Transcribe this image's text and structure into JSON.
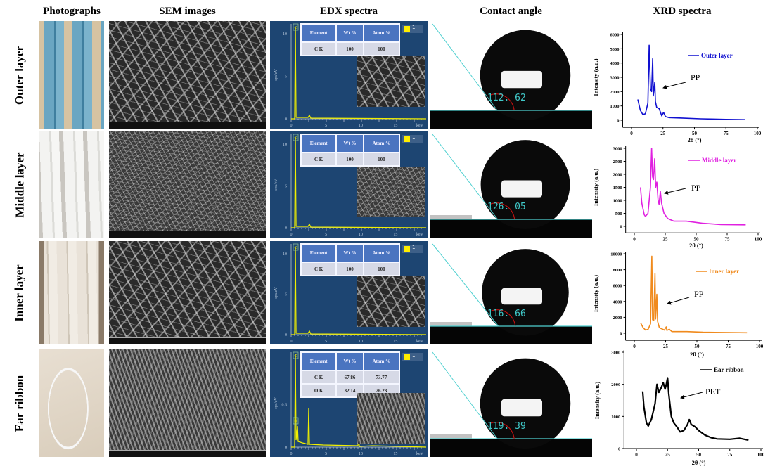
{
  "headers": {
    "photographs": "Photographs",
    "sem": "SEM images",
    "edx": "EDX spectra",
    "contact_angle": "Contact angle",
    "xrd": "XRD spectra"
  },
  "rows": [
    {
      "label": "Outer layer",
      "contact_angle": "112. 62",
      "edx": {
        "columns": [
          "Element",
          "Wt %",
          "Atom %"
        ],
        "rows": [
          [
            "C K",
            "100",
            "100"
          ]
        ],
        "y_ticks": [
          "0",
          "5",
          "10"
        ],
        "peaks": [
          "C"
        ],
        "legend": "1"
      }
    },
    {
      "label": "Middle layer",
      "contact_angle": "126. 05",
      "edx": {
        "columns": [
          "Element",
          "Wt %",
          "Atom %"
        ],
        "rows": [
          [
            "C K",
            "100",
            "100"
          ]
        ],
        "y_ticks": [
          "0",
          "5",
          "10"
        ],
        "peaks": [
          "C"
        ],
        "legend": "1"
      }
    },
    {
      "label": "Inner layer",
      "contact_angle": "116. 66",
      "edx": {
        "columns": [
          "Element",
          "Wt %",
          "Atom %"
        ],
        "rows": [
          [
            "C K",
            "100",
            "100"
          ]
        ],
        "y_ticks": [
          "0",
          "5",
          "10"
        ],
        "peaks": [
          "C"
        ],
        "legend": "1"
      }
    },
    {
      "label": "Ear ribbon",
      "contact_angle": "119. 39",
      "edx": {
        "columns": [
          "Element",
          "Wt %",
          "Atom %"
        ],
        "rows": [
          [
            "C K",
            "67.86",
            "73.77"
          ],
          [
            "O K",
            "32.14",
            "26.23"
          ]
        ],
        "y_ticks": [
          "0",
          "0.5",
          "1"
        ],
        "peaks": [
          "C",
          "O"
        ],
        "legend": "1"
      }
    }
  ],
  "edx_axis": {
    "ylabel": "cps/eV",
    "x_ticks": [
      "0",
      "5",
      "10",
      "15"
    ],
    "xunit": "keV"
  },
  "chart_data": [
    {
      "type": "line",
      "series": [
        {
          "name": "Outer layer",
          "color": "#1010d0",
          "points": [
            [
              5,
              1450
            ],
            [
              7,
              700
            ],
            [
              9,
              400
            ],
            [
              11,
              450
            ],
            [
              13,
              1200
            ],
            [
              14,
              5250
            ],
            [
              15,
              2200
            ],
            [
              16,
              2000
            ],
            [
              16.8,
              4300
            ],
            [
              17.3,
              1700
            ],
            [
              18.5,
              2650
            ],
            [
              19,
              1300
            ],
            [
              20,
              900
            ],
            [
              22,
              800
            ],
            [
              24,
              300
            ],
            [
              25.5,
              550
            ],
            [
              27,
              250
            ],
            [
              30,
              180
            ],
            [
              40,
              150
            ],
            [
              55,
              100
            ],
            [
              75,
              60
            ],
            [
              90,
              40
            ]
          ]
        }
      ],
      "xlabel": "2θ (°)",
      "ylabel": "Intensity (a.u.)",
      "xlim": [
        -7,
        100
      ],
      "ylim": [
        -500,
        6000
      ],
      "x_ticks": [
        "0",
        "25",
        "50",
        "75",
        "100"
      ],
      "y_ticks": [
        "0",
        "1000",
        "2000",
        "3000",
        "4000",
        "5000",
        "6000"
      ],
      "annotation": "PP",
      "legend": "right"
    },
    {
      "type": "line",
      "series": [
        {
          "name": "Middle layer",
          "color": "#e020e0",
          "points": [
            [
              5,
              1500
            ],
            [
              6,
              900
            ],
            [
              8,
              450
            ],
            [
              9,
              380
            ],
            [
              11,
              500
            ],
            [
              13,
              1500
            ],
            [
              14,
              3000
            ],
            [
              14.8,
              1900
            ],
            [
              15.5,
              1800
            ],
            [
              16.5,
              2600
            ],
            [
              17.2,
              1500
            ],
            [
              18.2,
              1700
            ],
            [
              19.2,
              1000
            ],
            [
              20,
              850
            ],
            [
              21,
              1350
            ],
            [
              22,
              900
            ],
            [
              24,
              500
            ],
            [
              27,
              300
            ],
            [
              32,
              200
            ],
            [
              42,
              200
            ],
            [
              55,
              120
            ],
            [
              70,
              70
            ],
            [
              90,
              60
            ]
          ]
        }
      ],
      "xlabel": "2θ (°)",
      "ylabel": "Intensity (a.u.)",
      "xlim": [
        -7,
        100
      ],
      "ylim": [
        -250,
        3000
      ],
      "x_ticks": [
        "0",
        "25",
        "50",
        "75",
        "100"
      ],
      "y_ticks": [
        "0",
        "500",
        "1000",
        "1500",
        "2000",
        "2500",
        "3000"
      ],
      "annotation": "PP",
      "legend": "right"
    },
    {
      "type": "line",
      "series": [
        {
          "name": "Inner layer",
          "color": "#f08a1c",
          "points": [
            [
              5,
              1300
            ],
            [
              7,
              700
            ],
            [
              9,
              400
            ],
            [
              11,
              500
            ],
            [
              13,
              1200
            ],
            [
              14,
              9700
            ],
            [
              14.6,
              1700
            ],
            [
              15.5,
              1600
            ],
            [
              16.5,
              7500
            ],
            [
              17,
              1800
            ],
            [
              18,
              4900
            ],
            [
              18.6,
              1500
            ],
            [
              20,
              700
            ],
            [
              24,
              400
            ],
            [
              25.5,
              800
            ],
            [
              26,
              350
            ],
            [
              28,
              500
            ],
            [
              30,
              200
            ],
            [
              42,
              200
            ],
            [
              55,
              120
            ],
            [
              90,
              60
            ]
          ]
        }
      ],
      "xlabel": "2θ (°)",
      "ylabel": "Intensity (a.u.)",
      "xlim": [
        -7,
        100
      ],
      "ylim": [
        -900,
        10000
      ],
      "x_ticks": [
        "0",
        "25",
        "50",
        "75",
        "100"
      ],
      "y_ticks": [
        "0",
        "2000",
        "4000",
        "6000",
        "8000",
        "10000"
      ],
      "annotation": "PP",
      "legend": "right"
    },
    {
      "type": "line",
      "series": [
        {
          "name": "Ear ribbon",
          "color": "#000000",
          "points": [
            [
              5,
              1780
            ],
            [
              6,
              1300
            ],
            [
              8,
              800
            ],
            [
              9.5,
              700
            ],
            [
              12,
              900
            ],
            [
              15,
              1400
            ],
            [
              16.5,
              2000
            ],
            [
              18,
              1750
            ],
            [
              20,
              1900
            ],
            [
              21.5,
              2050
            ],
            [
              23,
              1850
            ],
            [
              24,
              2000
            ],
            [
              25,
              2200
            ],
            [
              26,
              1700
            ],
            [
              28,
              1000
            ],
            [
              30,
              800
            ],
            [
              33,
              650
            ],
            [
              35,
              520
            ],
            [
              38,
              560
            ],
            [
              41,
              750
            ],
            [
              42.5,
              900
            ],
            [
              44,
              750
            ],
            [
              47,
              680
            ],
            [
              50,
              560
            ],
            [
              55,
              420
            ],
            [
              60,
              340
            ],
            [
              65,
              300
            ],
            [
              75,
              290
            ],
            [
              83,
              320
            ],
            [
              90,
              260
            ]
          ]
        }
      ],
      "xlabel": "2θ (°)",
      "ylabel": "Intensity (a.u.)",
      "xlim": [
        -10,
        100
      ],
      "ylim": [
        0,
        3000
      ],
      "x_ticks": [
        "0",
        "25",
        "50",
        "75",
        "100"
      ],
      "y_ticks": [
        "0",
        "1000",
        "2000",
        "3000"
      ],
      "annotation": "PET",
      "legend": "right"
    }
  ]
}
